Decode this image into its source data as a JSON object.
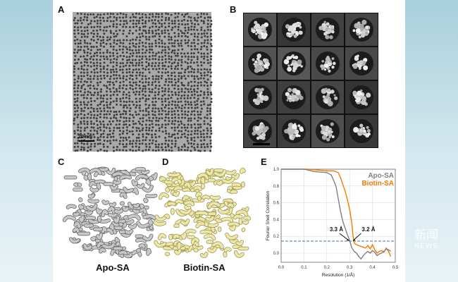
{
  "panels": {
    "A": {
      "label": "A",
      "scale_bar": "20 nm"
    },
    "B": {
      "label": "B",
      "grid_rows": 4,
      "grid_cols": 4
    },
    "C": {
      "label": "C",
      "caption": "Apo-SA",
      "map_color": "#c8c8c8"
    },
    "D": {
      "label": "D",
      "caption": "Biotin-SA",
      "map_color": "#eee8a8"
    },
    "E": {
      "label": "E"
    }
  },
  "watermark": {
    "line1": "新闻",
    "line2": "NEWS"
  },
  "chart_data": {
    "type": "line",
    "xlabel": "Resolution (1/Å)",
    "ylabel": "Fourier Shell Correlation",
    "xlim": [
      0.0,
      0.5
    ],
    "ylim": [
      -0.1,
      1.0
    ],
    "xticks": [
      "0.0",
      "0.1",
      "0.2",
      "0.3",
      "0.4",
      "0.5"
    ],
    "yticks": [
      "0.0",
      "0.2",
      "0.4",
      "0.6",
      "0.8",
      "1.0"
    ],
    "grid": true,
    "legend_placement": "top-right",
    "threshold": {
      "y": 0.143,
      "color": "#4a6fa5",
      "style": "dashed"
    },
    "annotations": [
      {
        "text": "3.3 Å",
        "x": 0.299,
        "y": 0.143
      },
      {
        "text": "3.2 Å",
        "x": 0.313,
        "y": 0.143
      }
    ],
    "series": [
      {
        "name": "Apo-SA",
        "color": "#808080",
        "x": [
          0,
          0.1,
          0.15,
          0.2,
          0.22,
          0.24,
          0.25,
          0.26,
          0.27,
          0.28,
          0.29,
          0.3,
          0.31,
          0.32,
          0.33,
          0.34,
          0.35,
          0.36,
          0.37,
          0.38,
          0.39,
          0.4,
          0.41,
          0.42,
          0.43,
          0.44,
          0.45,
          0.46,
          0.47,
          0.48
        ],
        "y": [
          1.0,
          1.0,
          0.97,
          0.96,
          0.93,
          0.8,
          0.65,
          0.5,
          0.38,
          0.3,
          0.22,
          0.15,
          0.06,
          0.02,
          0.0,
          -0.04,
          -0.07,
          -0.03,
          0.0,
          0.02,
          0.0,
          0.03,
          0.01,
          -0.03,
          -0.01,
          0.0,
          0.02,
          0.05,
          0.04,
          0.02
        ]
      },
      {
        "name": "Biotin-SA",
        "color": "#f07c00",
        "x": [
          0,
          0.12,
          0.16,
          0.2,
          0.23,
          0.25,
          0.26,
          0.27,
          0.28,
          0.29,
          0.3,
          0.31,
          0.315,
          0.32,
          0.33,
          0.34,
          0.35,
          0.36,
          0.37,
          0.38,
          0.39,
          0.4,
          0.41,
          0.42,
          0.43,
          0.44,
          0.45,
          0.46,
          0.47,
          0.48
        ],
        "y": [
          1.0,
          1.0,
          0.99,
          0.98,
          0.98,
          0.96,
          0.9,
          0.82,
          0.74,
          0.64,
          0.52,
          0.35,
          0.2,
          0.12,
          0.1,
          0.09,
          0.08,
          0.07,
          0.06,
          0.09,
          0.05,
          0.1,
          0.04,
          0.0,
          0.02,
          0.03,
          0.01,
          0.06,
          0.02,
          -0.04
        ]
      }
    ]
  }
}
